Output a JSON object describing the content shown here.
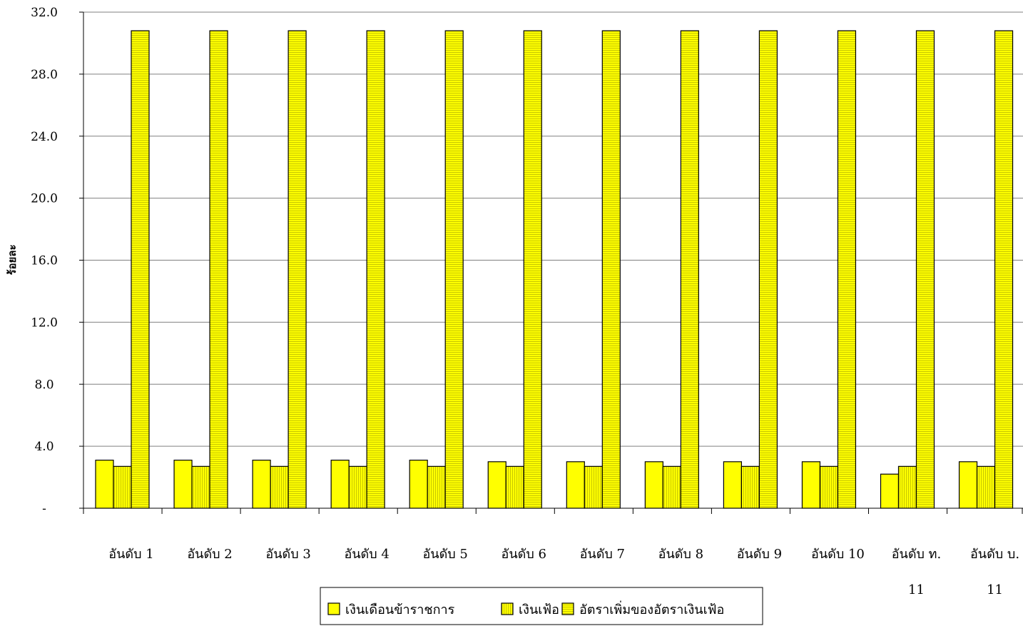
{
  "chart_data": {
    "type": "bar",
    "ylabel": "ร้อยละ",
    "ylim": [
      0,
      32
    ],
    "ytick_values": [
      0,
      4,
      8,
      12,
      16,
      20,
      24,
      28,
      32
    ],
    "ytick_labels": [
      "-",
      "4.0",
      "8.0",
      "12.0",
      "16.0",
      "20.0",
      "24.0",
      "28.0",
      "32.0"
    ],
    "grid": true,
    "legend_position": "bottom",
    "categories": [
      "อันดับ 1",
      "อันดับ 2",
      "อันดับ 3",
      "อันดับ 4",
      "อันดับ 5",
      "อันดับ 6",
      "อันดับ 7",
      "อันดับ 8",
      "อันดับ 9",
      "อันดับ 10",
      "อันดับ ท. 11",
      "อันดับ บ. 11"
    ],
    "series": [
      {
        "name": "เงินเดือนข้าราชการ",
        "pattern": "solid",
        "values": [
          3.1,
          3.1,
          3.1,
          3.1,
          3.1,
          3.0,
          3.0,
          3.0,
          3.0,
          3.0,
          2.2,
          3.0
        ]
      },
      {
        "name": "เงินเฟ้อ",
        "pattern": "vertical-lines",
        "values": [
          2.7,
          2.7,
          2.7,
          2.7,
          2.7,
          2.7,
          2.7,
          2.7,
          2.7,
          2.7,
          2.7,
          2.7
        ]
      },
      {
        "name": "อัตราเพิ่มของอัตราเงินเฟ้อ",
        "pattern": "horizontal-lines",
        "values": [
          30.8,
          30.8,
          30.8,
          30.8,
          30.8,
          30.8,
          30.8,
          30.8,
          30.8,
          30.8,
          30.8,
          30.8
        ]
      }
    ],
    "colors": {
      "bar_fill": "#ffff00",
      "pattern_stroke": "#c8c800",
      "border": "#000000",
      "grid": "#808080"
    }
  }
}
